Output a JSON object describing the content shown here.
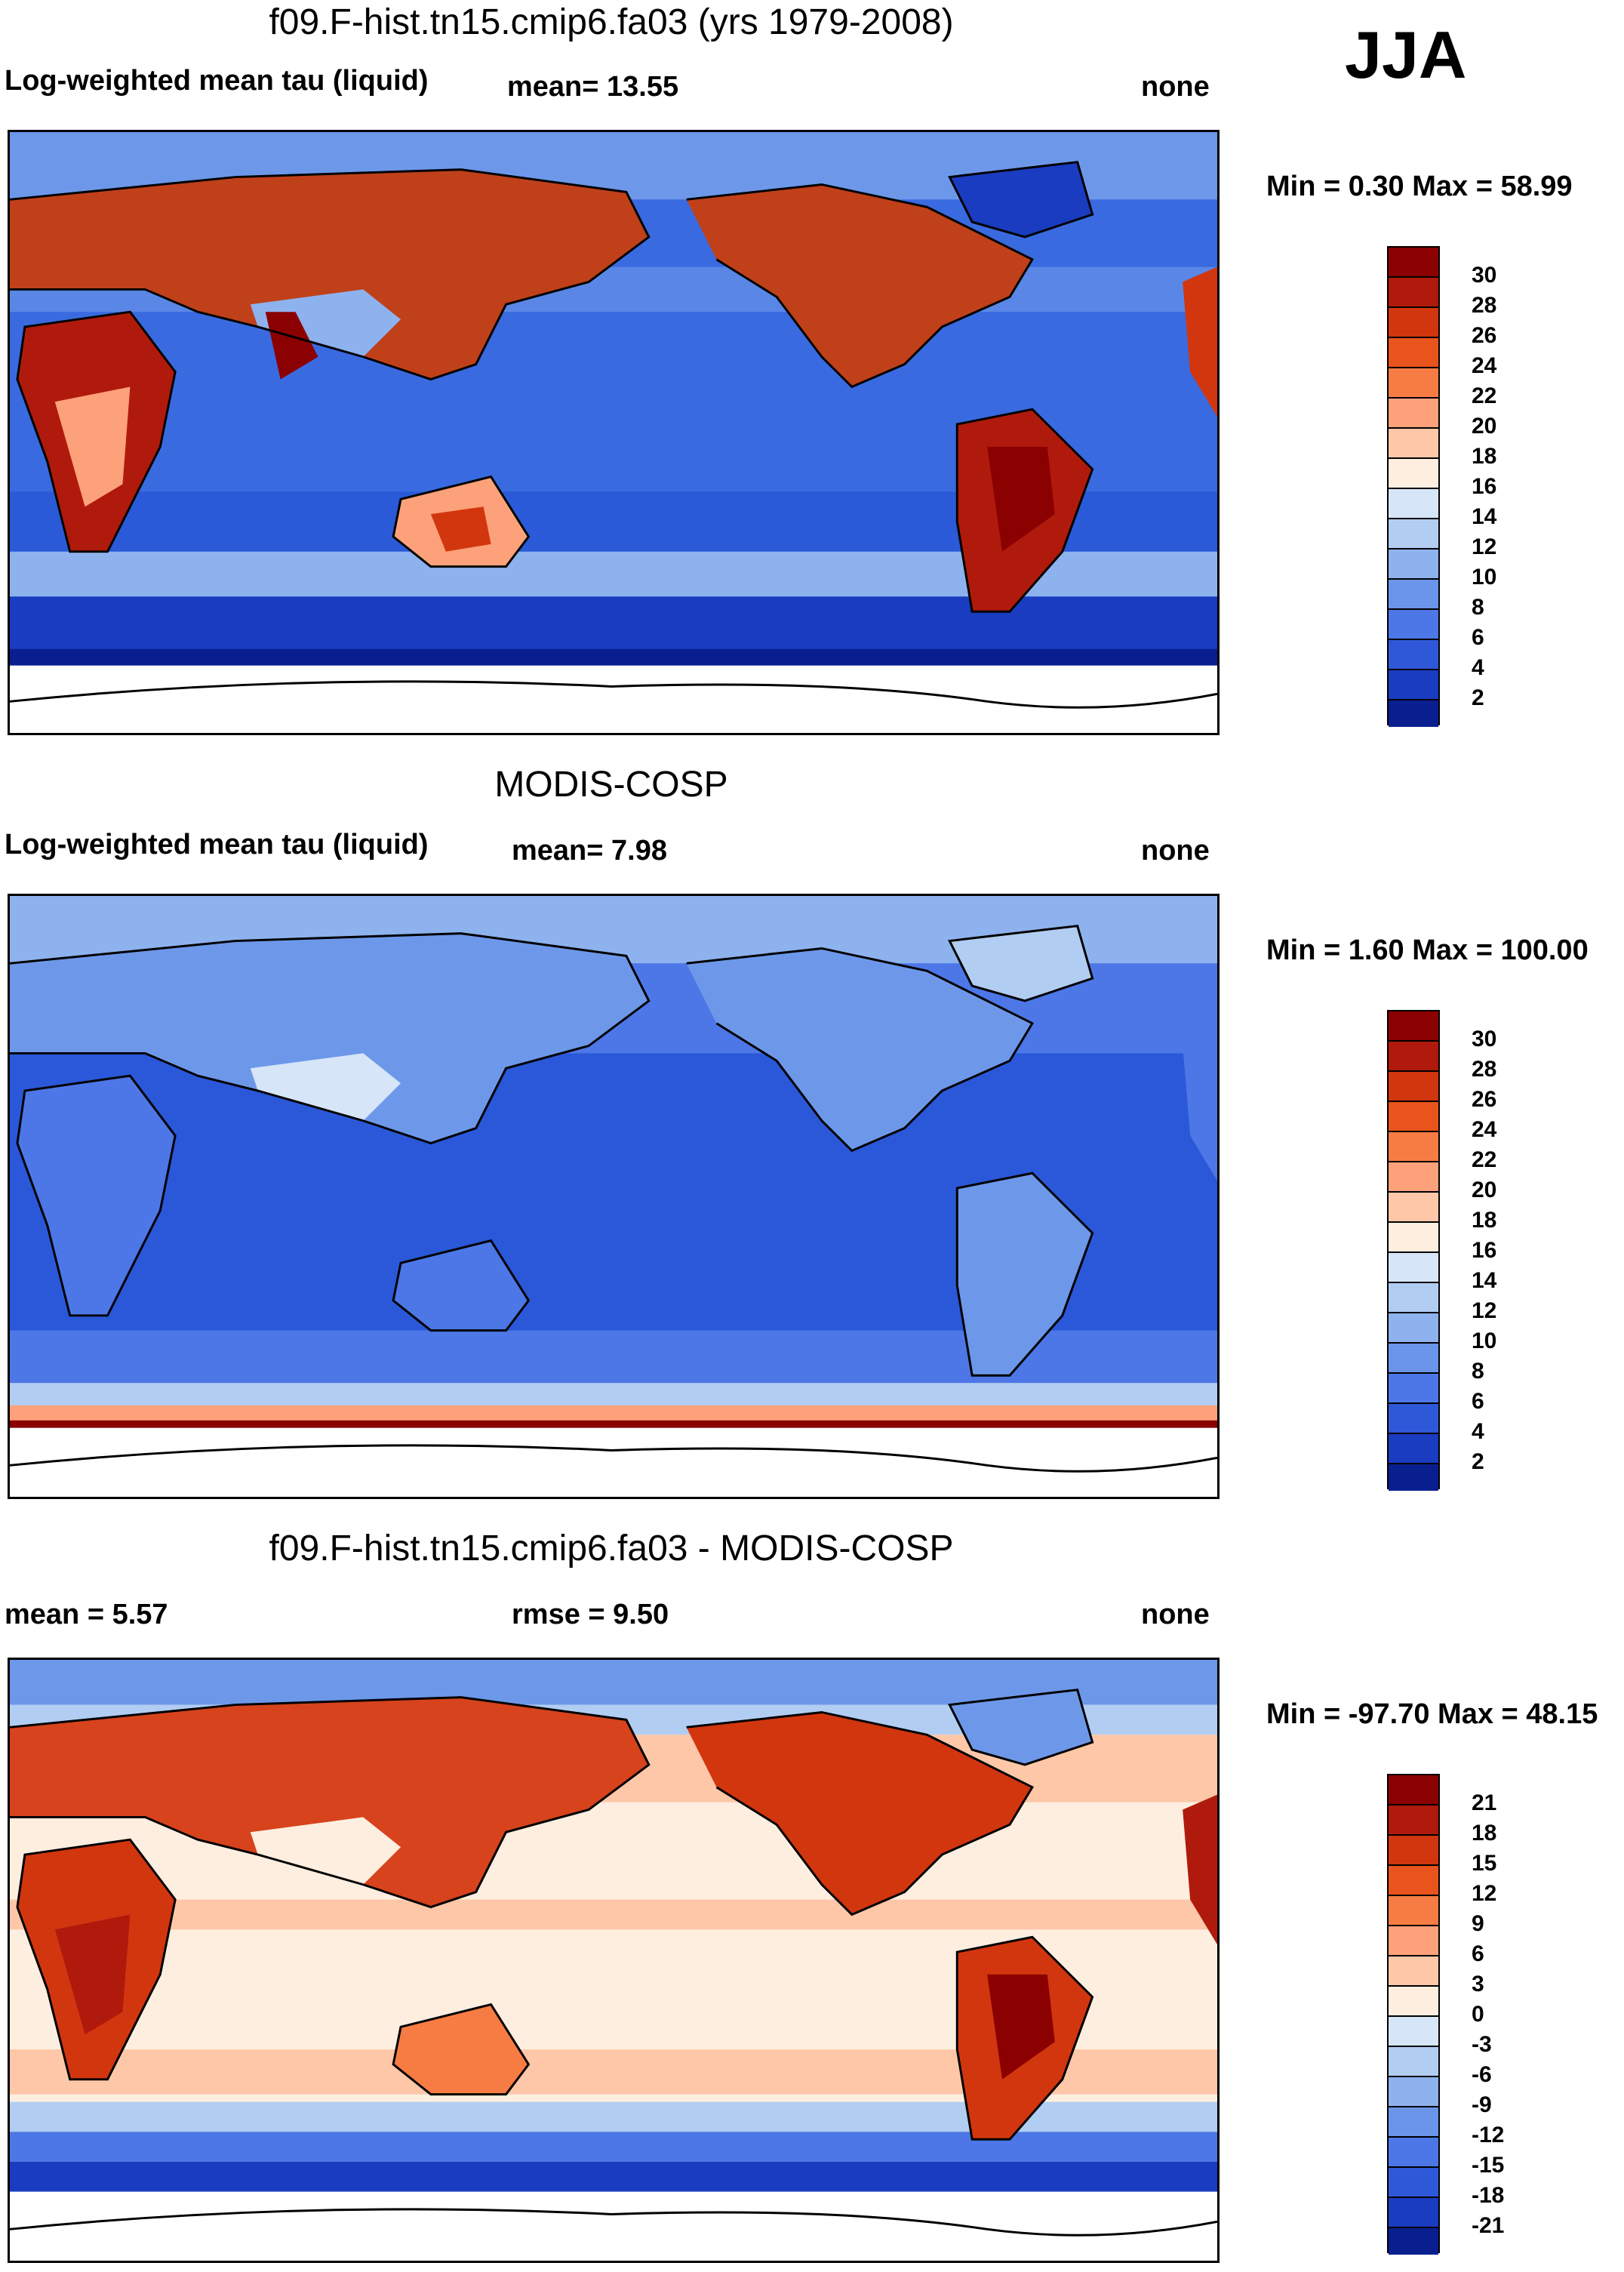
{
  "season": "JJA",
  "panels": [
    {
      "id": "model",
      "title": "f09.F-hist.tn15.cmip6.fa03 (yrs 1979-2008)",
      "left_label": "Log-weighted mean tau (liquid)",
      "center_label": "mean=  13.55",
      "right_label": "none",
      "minmax": "Min =   0.30 Max =  58.99",
      "colorbar_ticks": [
        "30",
        "28",
        "26",
        "24",
        "22",
        "20",
        "18",
        "16",
        "14",
        "12",
        "10",
        "8",
        "6",
        "4",
        "2"
      ]
    },
    {
      "id": "obs",
      "title": "MODIS-COSP",
      "left_label": "Log-weighted mean tau (liquid)",
      "center_label": "mean=   7.98",
      "right_label": "none",
      "minmax": "Min =   1.60 Max = 100.00",
      "colorbar_ticks": [
        "30",
        "28",
        "26",
        "24",
        "22",
        "20",
        "18",
        "16",
        "14",
        "12",
        "10",
        "8",
        "6",
        "4",
        "2"
      ]
    },
    {
      "id": "diff",
      "title": "f09.F-hist.tn15.cmip6.fa03 - MODIS-COSP",
      "left_label": "mean =   5.57",
      "center_label": "rmse =   9.50",
      "right_label": "none",
      "minmax": "Min = -97.70 Max =  48.15",
      "colorbar_ticks": [
        "21",
        "18",
        "15",
        "12",
        "9",
        "6",
        "3",
        "0",
        "-3",
        "-6",
        "-9",
        "-12",
        "-15",
        "-18",
        "-21"
      ]
    }
  ],
  "colors": {
    "seq": [
      "#8b0000",
      "#b01a0c",
      "#d2360f",
      "#e9531c",
      "#f77c44",
      "#fca17a",
      "#fdc7a8",
      "#fdeee0",
      "#d6e6f8",
      "#b2cdf2",
      "#8eb2ee",
      "#6b95ea",
      "#4d77e6",
      "#2f58d8",
      "#1a3cc0",
      "#0a1f8f"
    ],
    "div": [
      "#8b0000",
      "#b01a0c",
      "#d2360f",
      "#e9531c",
      "#f77c44",
      "#fca17a",
      "#fdc7a8",
      "#fdeee0",
      "#d6e6f8",
      "#b2cdf2",
      "#8eb2ee",
      "#6b95ea",
      "#4d77e6",
      "#2f58d8",
      "#1a3cc0",
      "#0a1f8f"
    ],
    "land_model": "#c0401a",
    "land_obs": "#6d98ea",
    "ocean_model": "#3f6fe2",
    "ocean_obs": "#2a5ae0",
    "ocean_diff": "#fde4d2",
    "land_diff": "#d6431c"
  }
}
